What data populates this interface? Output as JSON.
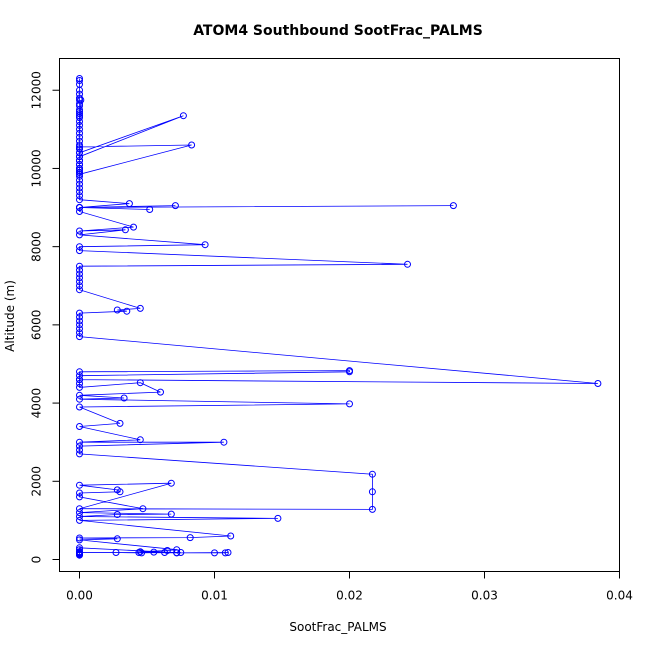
{
  "chart_data": {
    "type": "scatter",
    "title": "ATOM4 Southbound SootFrac_PALMS",
    "xlabel": "SootFrac_PALMS",
    "ylabel": "Altitude (m)",
    "xlim": [
      0,
      0.04
    ],
    "ylim": [
      0,
      12500
    ],
    "xticks": [
      0.0,
      0.01,
      0.02,
      0.03,
      0.04
    ],
    "xtick_labels": [
      "0.00",
      "0.01",
      "0.02",
      "0.03",
      "0.04"
    ],
    "yticks": [
      0,
      2000,
      4000,
      6000,
      8000,
      10000,
      12000
    ],
    "ytick_labels": [
      "0",
      "2000",
      "4000",
      "6000",
      "8000",
      "10000",
      "12000"
    ],
    "grid": false,
    "color": "#0000ff",
    "series": [
      {
        "x": [
          0,
          0,
          0,
          0,
          0,
          0,
          0,
          0,
          0,
          0,
          0,
          0,
          0,
          0,
          0,
          0,
          0,
          0,
          0.0001,
          0,
          0,
          0,
          0,
          0,
          0.0077,
          0,
          0,
          0,
          0,
          0,
          0,
          0,
          0.0083,
          0,
          0,
          0,
          0,
          0,
          0,
          0,
          0,
          0,
          0,
          0,
          0,
          0,
          0,
          0,
          0.0037,
          0,
          0.0052,
          0,
          0.0071,
          0,
          0.0277,
          0,
          0,
          0.004,
          0,
          0.0034,
          0,
          0.0093,
          0,
          0,
          0.0243,
          0,
          0,
          0,
          0,
          0,
          0,
          0,
          0.0045,
          0.0028,
          0.0035,
          0,
          0,
          0,
          0,
          0,
          0,
          0,
          0.0384,
          0,
          0,
          0.02,
          0.02,
          0,
          0,
          0,
          0,
          0.0045,
          0.006,
          0,
          0.0033,
          0,
          0.02,
          0,
          0.003,
          0,
          0.0045,
          0,
          0.0107,
          0,
          0,
          0,
          0.0217,
          0.0217,
          0.0217,
          0,
          0.0068,
          0,
          0.0028,
          0.003,
          0,
          0,
          0.0047,
          0,
          0.0068,
          0.0028,
          0,
          0.0147,
          0,
          0.0112,
          0.0082,
          0,
          0.0028,
          0,
          0.0072,
          0.0065,
          0.0045,
          0.0055,
          0.0075,
          0,
          0.01,
          0.0108,
          0.011,
          0.0072,
          0.0044,
          0.0027,
          0.0046,
          0.0063,
          0.0072,
          0,
          0,
          0,
          0,
          0,
          0,
          0,
          0,
          0,
          0
        ],
        "y": [
          12300,
          12250,
          12150,
          12000,
          11900,
          11800,
          11750,
          11650,
          11600,
          11500,
          11450,
          11400,
          11350,
          11300,
          11200,
          11100,
          11000,
          10900,
          11750,
          10800,
          10700,
          10600,
          10500,
          10400,
          11350,
          10300,
          10200,
          10100,
          10000,
          9950,
          9900,
          9850,
          10600,
          10550,
          10500,
          10400,
          10300,
          10200,
          10100,
          10000,
          9900,
          9800,
          9700,
          9600,
          9500,
          9400,
          9300,
          9200,
          9100,
          9000,
          8950,
          9000,
          9050,
          9000,
          9050,
          9000,
          8900,
          8500,
          8400,
          8430,
          8300,
          8050,
          8000,
          7900,
          7550,
          7500,
          7400,
          7300,
          7200,
          7100,
          7000,
          6900,
          6420,
          6380,
          6350,
          6300,
          6200,
          6100,
          6000,
          5900,
          5800,
          5700,
          4500,
          4600,
          4800,
          4830,
          4800,
          4700,
          4600,
          4500,
          4400,
          4520,
          4280,
          4200,
          4130,
          4100,
          3980,
          3900,
          3480,
          3400,
          3060,
          3000,
          3000,
          2900,
          2800,
          2700,
          2180,
          1730,
          1280,
          1300,
          1950,
          1900,
          1780,
          1730,
          1700,
          1600,
          1300,
          1200,
          1160,
          1150,
          1100,
          1050,
          1000,
          600,
          560,
          550,
          530,
          500,
          250,
          230,
          200,
          190,
          180,
          180,
          170,
          170,
          180,
          170,
          180,
          180,
          170,
          180,
          175,
          300,
          250,
          200,
          180,
          160,
          150,
          140,
          130,
          120,
          110
        ]
      }
    ]
  }
}
